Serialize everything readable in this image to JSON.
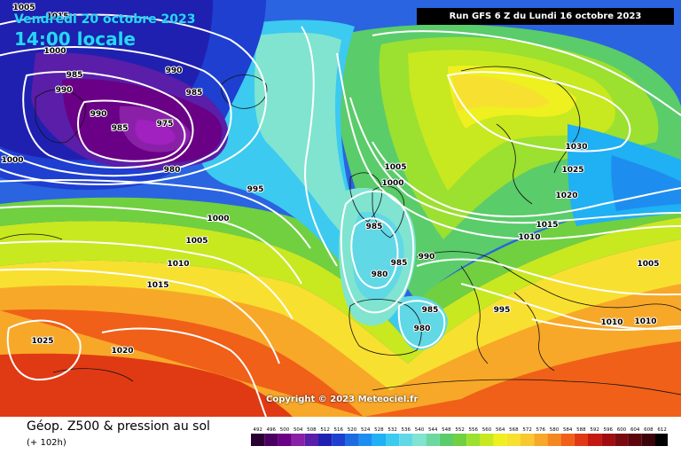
{
  "header": {
    "date_line": "Vendredi 20 octobre 2023",
    "time_line": "14:00 locale",
    "run_info": "Run GFS 6 Z du Lundi 16 octobre 2023"
  },
  "map": {
    "copyright": "Copyright © 2023 Meteociel.fr",
    "title": "Géop. Z500 & pression au sol",
    "subtitle": "(+ 102h)",
    "pressure_labels": [
      {
        "id": "985a",
        "text": "985"
      },
      {
        "id": "990a",
        "text": "990"
      },
      {
        "id": "990b",
        "text": "990"
      },
      {
        "id": "990c",
        "text": "990"
      },
      {
        "id": "985b",
        "text": "985"
      },
      {
        "id": "985c",
        "text": "985"
      },
      {
        "id": "975",
        "text": "975"
      },
      {
        "id": "980a",
        "text": "980"
      },
      {
        "id": "1000a",
        "text": "1000"
      },
      {
        "id": "995a",
        "text": "995"
      },
      {
        "id": "1000b",
        "text": "1000"
      },
      {
        "id": "1005a",
        "text": "1005"
      },
      {
        "id": "1010a",
        "text": "1010"
      },
      {
        "id": "1015a",
        "text": "1015"
      },
      {
        "id": "1025a",
        "text": "1025"
      },
      {
        "id": "1020a",
        "text": "1020"
      },
      {
        "id": "1005b",
        "text": "1005"
      },
      {
        "id": "1000c",
        "text": "1000"
      },
      {
        "id": "985d",
        "text": "985"
      },
      {
        "id": "985e",
        "text": "985"
      },
      {
        "id": "980b",
        "text": "980"
      },
      {
        "id": "990d",
        "text": "990"
      },
      {
        "id": "985f",
        "text": "985"
      },
      {
        "id": "980c",
        "text": "980"
      },
      {
        "id": "995b",
        "text": "995"
      },
      {
        "id": "1030",
        "text": "1030"
      },
      {
        "id": "1025b",
        "text": "1025"
      },
      {
        "id": "1020b",
        "text": "1020"
      },
      {
        "id": "1015b",
        "text": "1015"
      },
      {
        "id": "1010b",
        "text": "1010"
      },
      {
        "id": "1005c",
        "text": "1005"
      },
      {
        "id": "1010c",
        "text": "1010"
      },
      {
        "id": "1010d",
        "text": "1010"
      },
      {
        "id": "1005d",
        "text": "1005"
      },
      {
        "id": "1015c",
        "text": "1015"
      },
      {
        "id": "1000d",
        "text": "1000"
      }
    ]
  },
  "legend": {
    "values": [
      "492",
      "496",
      "500",
      "504",
      "508",
      "512",
      "516",
      "520",
      "524",
      "528",
      "532",
      "536",
      "540",
      "544",
      "548",
      "552",
      "556",
      "560",
      "564",
      "568",
      "572",
      "576",
      "580",
      "584",
      "588",
      "592",
      "596",
      "600",
      "604",
      "608",
      "612"
    ],
    "colors": [
      "#2a0033",
      "#4a0060",
      "#6a0085",
      "#8a20a8",
      "#5a1ea8",
      "#2020b0",
      "#1e3fd0",
      "#1e6ae0",
      "#1d8ef0",
      "#20b0f4",
      "#3ccaf0",
      "#60d8e6",
      "#80e4d0",
      "#6cd8a0",
      "#5acc6a",
      "#70d040",
      "#9ce030",
      "#c8e820",
      "#eef020",
      "#f8e030",
      "#f8c830",
      "#f8a828",
      "#f48820",
      "#f06018",
      "#e03a14",
      "#c41810",
      "#a00c10",
      "#7a0a10",
      "#5a060c",
      "#3a0408",
      "#000000"
    ]
  }
}
